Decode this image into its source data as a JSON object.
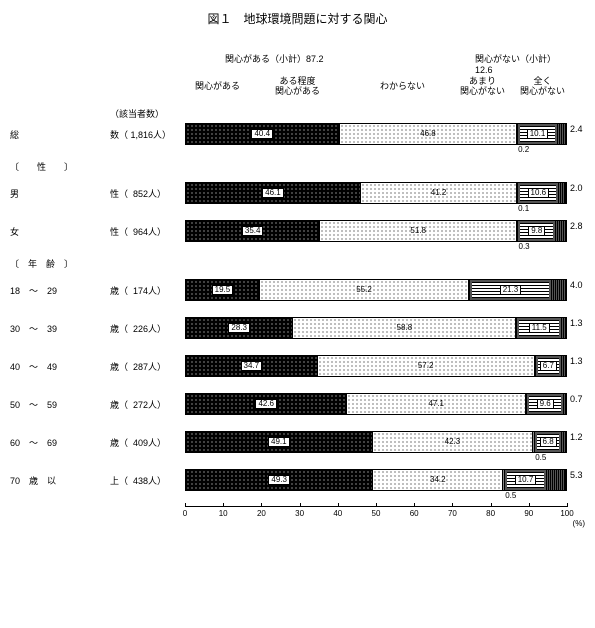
{
  "title": "図１　地球環境問題に対する関心",
  "subtotal_left": "関心がある（小計）87.2",
  "subtotal_right": "関心がない（小計）12.6",
  "categories": {
    "c1": "関心がある",
    "c2": "ある程度\n関心がある",
    "c3": "わからない",
    "c4": "あまり\n関心がない",
    "c5": "全く\n関心がない"
  },
  "count_header": "（該当者数）",
  "section_gender": "〔　　性　　〕",
  "section_age": "〔　年　齢　〕",
  "axis": {
    "min": 0,
    "max": 100,
    "step": 10,
    "unit": "(%)"
  },
  "colors": {
    "interested": "#000000",
    "somewhat_bg": "#ffffff",
    "dontknow": "#888888",
    "notmuch_border": "#555555",
    "none": "#555555"
  },
  "rows": [
    {
      "label": "総",
      "count_label": "数（ 1,816人）",
      "segs": [
        40.4,
        46.8,
        0.2,
        10.1,
        2.4
      ],
      "below_idx": 2,
      "below_val": "0.2"
    },
    {
      "label": "男",
      "count_label": "性（  852人）",
      "segs": [
        46.1,
        41.2,
        0.1,
        10.6,
        2.0
      ],
      "below_idx": 2,
      "below_val": "0.1"
    },
    {
      "label": "女",
      "count_label": "性（  964人）",
      "segs": [
        35.4,
        51.8,
        0.3,
        9.8,
        2.8
      ],
      "below_idx": 2,
      "below_val": "0.3"
    },
    {
      "label": "18　～　29",
      "count_label": "歳（  174人）",
      "segs": [
        19.5,
        55.2,
        0.0,
        21.3,
        4.0
      ],
      "below_idx": -1,
      "below_val": ""
    },
    {
      "label": "30　～　39",
      "count_label": "歳（  226人）",
      "segs": [
        28.3,
        58.8,
        0.0,
        11.5,
        1.3
      ],
      "below_idx": -1,
      "below_val": ""
    },
    {
      "label": "40　～　49",
      "count_label": "歳（  287人）",
      "segs": [
        34.7,
        57.2,
        0.0,
        6.7,
        1.3
      ],
      "below_idx": -1,
      "below_val": ""
    },
    {
      "label": "50　～　59",
      "count_label": "歳（  272人）",
      "segs": [
        42.6,
        47.1,
        0.0,
        9.6,
        0.7
      ],
      "below_idx": -1,
      "below_val": ""
    },
    {
      "label": "60　～　69",
      "count_label": "歳（  409人）",
      "segs": [
        49.1,
        42.3,
        0.5,
        6.8,
        1.2
      ],
      "below_idx": 2,
      "below_val": "0.5"
    },
    {
      "label": "70　歳　以",
      "count_label": "上（  438人）",
      "segs": [
        49.3,
        34.2,
        0.5,
        10.7,
        5.3
      ],
      "below_idx": 2,
      "below_val": "0.5"
    }
  ],
  "seg_show_label": [
    true,
    true,
    false,
    true,
    false
  ],
  "seg_label_boxed": [
    true,
    false,
    false,
    true,
    false
  ]
}
